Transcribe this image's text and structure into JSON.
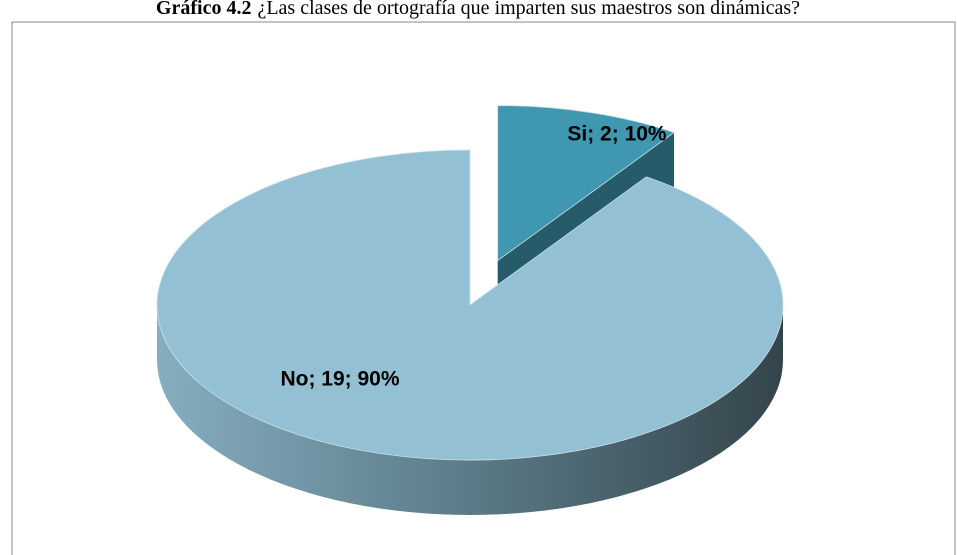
{
  "chart_data": {
    "type": "pie",
    "title_number": "Gráfico 4.2",
    "title": "¿Las clases de ortografía que imparten sus maestros son dinámicas?",
    "categories": [
      "Si",
      "No"
    ],
    "values": [
      2,
      19
    ],
    "percentages": [
      10,
      90
    ],
    "value_labels": [
      "Si; 2; 10%",
      "No; 19; 90%"
    ],
    "colors": [
      "#3f97b0",
      "#93c0d3"
    ],
    "exploded": [
      true,
      false
    ]
  }
}
